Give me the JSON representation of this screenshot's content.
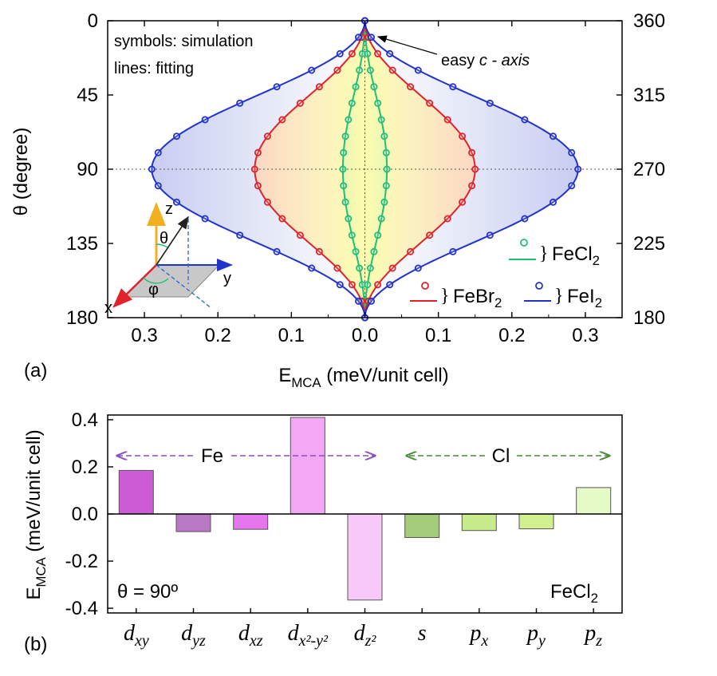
{
  "chart_data": [
    {
      "panel_label": "(a)",
      "type": "line",
      "xlabel_main": "E",
      "xlabel_sub": "MCA",
      "xlabel_rest": " (meV/unit cell)",
      "ylabel_main": "θ (degree)",
      "xlim": [
        -0.35,
        0.35
      ],
      "ylim": [
        0,
        180
      ],
      "x_ticks": [
        "0.3",
        "0.2",
        "0.1",
        "0.0",
        "0.1",
        "0.2",
        "0.3"
      ],
      "x_tick_values": [
        -0.3,
        -0.2,
        -0.1,
        0.0,
        0.1,
        0.2,
        0.3
      ],
      "y_ticks_left": [
        "0",
        "45",
        "90",
        "135",
        "180"
      ],
      "y_ticks_right": [
        "360",
        "315",
        "270",
        "225",
        "180"
      ],
      "y_tick_values": [
        0,
        45,
        90,
        135,
        180
      ],
      "grid": false,
      "annotations": {
        "symbols_note": "symbols: simulation",
        "lines_note": "lines: fitting",
        "easy_axis_prefix": "easy ",
        "easy_axis_italic": "c - axis"
      },
      "theta_samples": [
        0,
        10,
        20,
        30,
        40,
        50,
        60,
        70,
        80,
        90,
        100,
        110,
        120,
        130,
        140,
        150,
        160,
        170,
        180
      ],
      "series": [
        {
          "name_main": "FeCl",
          "name_sub": "2",
          "color": "#1fbf78",
          "amplitude": 0.03,
          "values": [
            0.0,
            0.0009,
            0.0035,
            0.0075,
            0.0124,
            0.0176,
            0.0225,
            0.0265,
            0.0291,
            0.03,
            0.0291,
            0.0265,
            0.0225,
            0.0176,
            0.0124,
            0.0075,
            0.0035,
            0.0009,
            0.0
          ]
        },
        {
          "name_main": "FeBr",
          "name_sub": "2",
          "color": "#e0232a",
          "amplitude": 0.15,
          "values": [
            0.0,
            0.0045,
            0.0175,
            0.0375,
            0.062,
            0.088,
            0.1125,
            0.1325,
            0.1455,
            0.15,
            0.1455,
            0.1325,
            0.1125,
            0.088,
            0.062,
            0.0375,
            0.0175,
            0.0045,
            0.0
          ]
        },
        {
          "name_main": "FeI",
          "name_sub": "2",
          "color": "#2233cc",
          "amplitude": 0.29,
          "values": [
            0.0,
            0.0087,
            0.0339,
            0.0725,
            0.1198,
            0.1702,
            0.2175,
            0.2561,
            0.2813,
            0.29,
            0.2813,
            0.2561,
            0.2175,
            0.1702,
            0.1198,
            0.0725,
            0.0339,
            0.0087,
            0.0
          ]
        }
      ],
      "inset_axes": {
        "z": "z",
        "x": "x",
        "y": "y",
        "theta": "θ",
        "phi": "φ"
      }
    },
    {
      "panel_label": "(b)",
      "type": "bar",
      "ylabel_main": "E",
      "ylabel_sub": "MCA",
      "ylabel_rest": " (meV/unit cell)",
      "ylim": [
        -0.42,
        0.42
      ],
      "y_ticks": [
        "0.4",
        "0.2",
        "0.0",
        "-0.2",
        "-0.4"
      ],
      "y_tick_values": [
        0.4,
        0.2,
        0.0,
        -0.2,
        -0.4
      ],
      "categories": [
        {
          "base": "d",
          "sub": "xy"
        },
        {
          "base": "d",
          "sub": "yz"
        },
        {
          "base": "d",
          "sub": "xz"
        },
        {
          "base": "d",
          "sub": "x²-y²"
        },
        {
          "base": "d",
          "sub": "z²"
        },
        {
          "base": "s",
          "sub": ""
        },
        {
          "base": "p",
          "sub": "x"
        },
        {
          "base": "p",
          "sub": "y"
        },
        {
          "base": "p",
          "sub": "z"
        }
      ],
      "values": [
        0.185,
        -0.075,
        -0.065,
        0.41,
        -0.365,
        -0.1,
        -0.07,
        -0.063,
        0.112
      ],
      "colors": [
        "#cc5cd6",
        "#b978c4",
        "#e576ef",
        "#f2a8f4",
        "#f8c9f8",
        "#a5cc78",
        "#c6ec8c",
        "#d2f090",
        "#e6fac8"
      ],
      "group_labels": {
        "fe": "Fe",
        "cl": "Cl"
      },
      "annotations": {
        "theta_note": "θ = 90º",
        "compound_main": "FeCl",
        "compound_sub": "2"
      }
    }
  ]
}
